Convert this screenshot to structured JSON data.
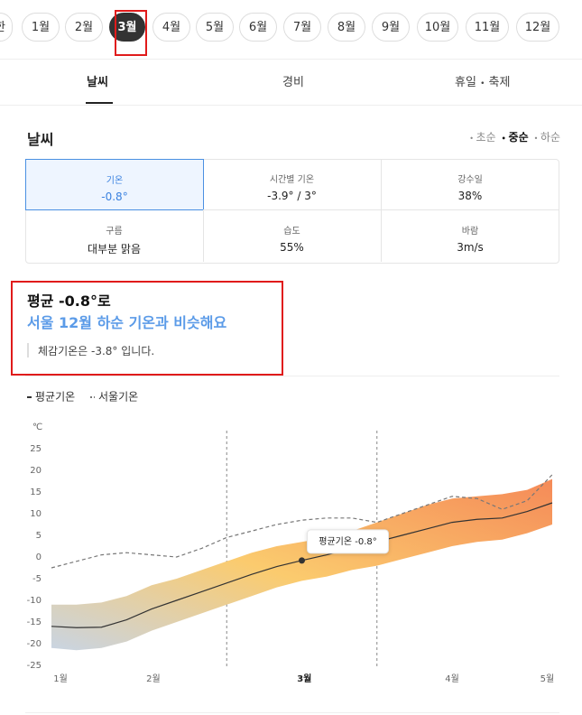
{
  "months": {
    "items": [
      "한",
      "1월",
      "2월",
      "3월",
      "4월",
      "5월",
      "6월",
      "7월",
      "8월",
      "9월",
      "10월",
      "11월",
      "12월"
    ],
    "selected": 3
  },
  "tabs": [
    "날씨",
    "경비",
    "휴일",
    "축제"
  ],
  "section": {
    "title": "날씨",
    "periods": [
      "초순",
      "중순",
      "하순"
    ],
    "selected_period": 1
  },
  "cells": [
    {
      "label": "기온",
      "value": "-0.8°"
    },
    {
      "label": "시간별 기온",
      "value": "-3.9° / 3°"
    },
    {
      "label": "강수일",
      "value": "38%"
    },
    {
      "label": "구름",
      "value": "대부분 맑음"
    },
    {
      "label": "습도",
      "value": "55%"
    },
    {
      "label": "바람",
      "value": "3m/s"
    }
  ],
  "summary": {
    "headline": "평균 -0.8°로",
    "comparison": "서울 12월 하순 기온과 비슷해요",
    "feels_like": "체감기온은 -3.8° 입니다."
  },
  "chart_data": {
    "type": "line",
    "y_label": "℃",
    "x": [
      0,
      1,
      2,
      3,
      4,
      5,
      6,
      7,
      8,
      9,
      10,
      11,
      12,
      13,
      14,
      15,
      16,
      17,
      18,
      19,
      20
    ],
    "xlim": [
      0,
      20
    ],
    "xticks": [
      {
        "value": 0.36,
        "label": "1월"
      },
      {
        "value": 4.07,
        "label": "2월"
      },
      {
        "value": 10.1,
        "label": "3월",
        "bold": true
      },
      {
        "value": 16.0,
        "label": "4월"
      },
      {
        "value": 19.8,
        "label": "5월"
      }
    ],
    "ylim": [
      -25,
      25
    ],
    "yticks": [
      25,
      20,
      15,
      10,
      5,
      0,
      -5,
      -10,
      -15,
      -20,
      -25
    ],
    "vlines": [
      7,
      13
    ],
    "band": {
      "low": [
        -21,
        -21.5,
        -21,
        -19.5,
        -17,
        -15,
        -13,
        -11,
        -9,
        -7,
        -5.5,
        -4.5,
        -3,
        -2,
        -0.5,
        1,
        2.5,
        3.5,
        4,
        5.5,
        7.5
      ],
      "high": [
        -11,
        -11,
        -10.5,
        -9,
        -6.5,
        -5,
        -3,
        -1,
        1,
        2.5,
        3.5,
        4.5,
        6,
        8,
        10,
        12,
        13.5,
        14,
        14.5,
        15.5,
        18
      ]
    },
    "series": [
      {
        "name": "평균기온",
        "color": "#333333",
        "values": [
          -16,
          -16.3,
          -16.2,
          -14.5,
          -12,
          -10,
          -8,
          -6,
          -4,
          -2.2,
          -0.8,
          0.5,
          2,
          3.5,
          5,
          6.5,
          8,
          8.7,
          9,
          10.5,
          12.5
        ]
      },
      {
        "name": "서울기온",
        "color": "#777777",
        "dashed": true,
        "values": [
          -2.5,
          -1,
          0.5,
          1,
          0.5,
          0,
          2,
          4.5,
          6,
          7.5,
          8.5,
          9,
          9,
          8,
          10,
          12,
          14,
          13.5,
          11,
          13,
          19
        ]
      }
    ],
    "point": {
      "x": 10,
      "y": -0.8,
      "label": "평균기온 -0.8°"
    }
  }
}
